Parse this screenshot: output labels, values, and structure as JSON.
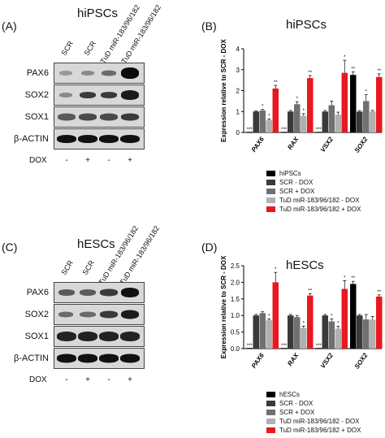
{
  "panelA": {
    "letter": "(A)",
    "title": "hiPSCs",
    "lanes": [
      "SCR",
      "SCR",
      "TuD miR-183/96/182",
      "TuD miR-183/96/182"
    ],
    "rows": [
      "PAX6",
      "SOX2",
      "SOX1",
      "β-ACTIN"
    ],
    "dox_label": "DOX",
    "dox": [
      "-",
      "+",
      "-",
      "+"
    ]
  },
  "panelC": {
    "letter": "(C)",
    "title": "hESCs",
    "lanes": [
      "SCR",
      "SCR",
      "TuD miR-183/96/182",
      "TuD miR-183/96/182"
    ],
    "rows": [
      "PAX6",
      "SOX2",
      "SOX1",
      "β-ACTIN"
    ],
    "dox_label": "DOX",
    "dox": [
      "-",
      "+",
      "-",
      "+"
    ]
  },
  "colors": {
    "black": "#000000",
    "dark_gray": "#3a3a3a",
    "mid_gray": "#707070",
    "light_gray": "#b0b0b0",
    "red": "#e8181e"
  },
  "chart_data": [
    {
      "panel": "(B)",
      "type": "bar",
      "title": "hiPSCs",
      "ylabel": "Expression relative to SCR - DOX",
      "ylim": [
        0,
        4
      ],
      "yticks": [
        "0",
        "1",
        "2",
        "3",
        "4"
      ],
      "categories": [
        "PAX6",
        "RAX",
        "VSX2",
        "SOX2"
      ],
      "series": [
        {
          "name": "hiPSCs",
          "color": "#000000",
          "values": [
            0.03,
            0.03,
            0.03,
            2.75
          ]
        },
        {
          "name": "SCR - DOX",
          "color": "#3a3a3a",
          "values": [
            1.0,
            1.0,
            1.0,
            1.0
          ]
        },
        {
          "name": "SCR + DOX",
          "color": "#707070",
          "values": [
            1.05,
            1.35,
            1.3,
            1.5
          ]
        },
        {
          "name": "TuD miR-183/96/182 - DOX",
          "color": "#b0b0b0",
          "values": [
            0.6,
            0.8,
            0.85,
            1.0
          ]
        },
        {
          "name": "TuD miR-183/96/182 + DOX",
          "color": "#e8181e",
          "values": [
            2.1,
            2.6,
            2.85,
            2.65
          ]
        }
      ],
      "errors": [
        [
          0.01,
          0.01,
          0.01,
          0.15
        ],
        [
          0.03,
          0.05,
          0.05,
          0.05
        ],
        [
          0.05,
          0.12,
          0.2,
          0.3
        ],
        [
          0.05,
          0.1,
          0.12,
          0.05
        ],
        [
          0.15,
          0.12,
          0.6,
          0.15
        ]
      ],
      "annotations": [
        [
          "***",
          "***",
          "***",
          "**"
        ],
        [
          "",
          "",
          "",
          ""
        ],
        [
          "*",
          "*",
          "",
          "*"
        ],
        [
          "*",
          "*",
          "",
          ""
        ],
        [
          "**",
          "**",
          "*",
          "**"
        ]
      ],
      "legend": [
        "hiPSCs",
        "SCR - DOX",
        "SCR + DOX",
        "TuD miR-183/96/182 - DOX",
        "TuD miR-183/96/182 + DOX"
      ]
    },
    {
      "panel": "(D)",
      "type": "bar",
      "title": "hESCs",
      "ylabel": "Expression relative to SCR - DOX",
      "ylim": [
        0,
        2.5
      ],
      "yticks": [
        "0.0",
        "0.5",
        "1.0",
        "1.5",
        "2.0",
        "2.5"
      ],
      "categories": [
        "PAX6",
        "RAX",
        "VSX2",
        "SOX2"
      ],
      "series": [
        {
          "name": "hESCs",
          "color": "#000000",
          "values": [
            0.02,
            0.02,
            0.02,
            1.95
          ]
        },
        {
          "name": "SCR - DOX",
          "color": "#3a3a3a",
          "values": [
            1.0,
            1.0,
            1.0,
            1.0
          ]
        },
        {
          "name": "SCR + DOX",
          "color": "#707070",
          "values": [
            1.07,
            0.95,
            0.82,
            0.88
          ]
        },
        {
          "name": "TuD miR-183/96/182 - DOX",
          "color": "#b0b0b0",
          "values": [
            0.86,
            0.62,
            0.6,
            0.87
          ]
        },
        {
          "name": "TuD miR-183/96/182 + DOX",
          "color": "#e8181e",
          "values": [
            2.0,
            1.6,
            1.8,
            1.57
          ]
        }
      ],
      "errors": [
        [
          0.01,
          0.01,
          0.01,
          0.08
        ],
        [
          0.03,
          0.03,
          0.03,
          0.03
        ],
        [
          0.04,
          0.05,
          0.08,
          0.15
        ],
        [
          0.04,
          0.06,
          0.07,
          0.1
        ],
        [
          0.3,
          0.06,
          0.25,
          0.05
        ]
      ],
      "annotations": [
        [
          "***",
          "***",
          "***",
          "**"
        ],
        [
          "",
          "",
          "",
          ""
        ],
        [
          "",
          "",
          "*",
          ""
        ],
        [
          "*",
          "*",
          "*",
          ""
        ],
        [
          "*",
          "**",
          "*",
          "**"
        ]
      ],
      "legend": [
        "hESCs",
        "SCR - DOX",
        "SCR + DOX",
        "TuD miR-183/96/182 - DOX",
        "TuD miR-183/96/182 + DOX"
      ]
    }
  ]
}
